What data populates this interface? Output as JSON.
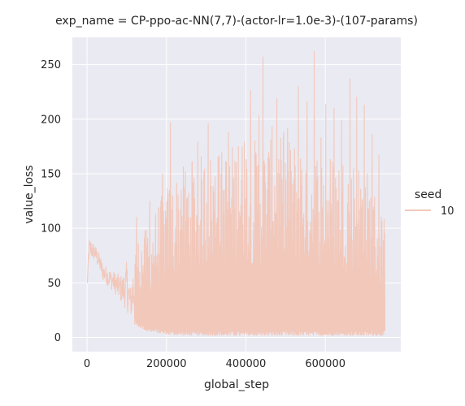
{
  "chart_data": {
    "type": "line",
    "title": "exp_name = CP-ppo-ac-NN(7,7)-(actor-lr=1.0e-3)-(107-params)",
    "xlabel": "global_step",
    "ylabel": "value_loss",
    "xlim": [
      -37000,
      790000
    ],
    "ylim": [
      -13,
      275
    ],
    "x_ticks": [
      0,
      200000,
      400000,
      600000
    ],
    "x_tick_labels": [
      "0",
      "200000",
      "400000",
      "600000"
    ],
    "y_ticks": [
      0,
      50,
      100,
      150,
      200,
      250
    ],
    "y_tick_labels": [
      "0",
      "50",
      "100",
      "150",
      "200",
      "250"
    ],
    "grid": true,
    "legend": {
      "title": "seed",
      "placement": "right",
      "entries": [
        "10"
      ]
    },
    "colors": {
      "background": "#eaeaf2",
      "grid": "#ffffff",
      "series": "#f2c8bb"
    },
    "series": [
      {
        "name": "10",
        "profile": {
          "x": [
            0,
            3000,
            5000,
            10000,
            20000,
            30000,
            40000,
            50000,
            60000,
            70000,
            80000,
            90000,
            100000,
            110000,
            120000,
            130000,
            150000,
            200000,
            250000,
            300000,
            350000,
            400000,
            450000,
            500000,
            550000,
            600000,
            650000,
            700000,
            750000
          ],
          "low": [
            40,
            65,
            68,
            72,
            70,
            62,
            52,
            48,
            44,
            40,
            35,
            30,
            24,
            18,
            12,
            10,
            6,
            3,
            2,
            2,
            2,
            2,
            2,
            2,
            2,
            2,
            2,
            2,
            2
          ],
          "high": [
            55,
            70,
            92,
            90,
            85,
            78,
            68,
            65,
            62,
            60,
            58,
            57,
            70,
            45,
            90,
            92,
            100,
            140,
            160,
            170,
            175,
            185,
            180,
            185,
            180,
            170,
            170,
            160,
            110
          ]
        },
        "peaks": [
          [
            125000,
            110
          ],
          [
            158000,
            125
          ],
          [
            190000,
            150
          ],
          [
            210000,
            197
          ],
          [
            237000,
            135
          ],
          [
            265000,
            161
          ],
          [
            279000,
            179
          ],
          [
            305000,
            196
          ],
          [
            330000,
            165
          ],
          [
            356000,
            188
          ],
          [
            381000,
            175
          ],
          [
            396000,
            179
          ],
          [
            412000,
            226
          ],
          [
            433000,
            203
          ],
          [
            443000,
            257
          ],
          [
            466000,
            193
          ],
          [
            478000,
            219
          ],
          [
            495000,
            188
          ],
          [
            505000,
            192
          ],
          [
            532000,
            230
          ],
          [
            554000,
            216
          ],
          [
            572000,
            262
          ],
          [
            589000,
            183
          ],
          [
            601000,
            214
          ],
          [
            622000,
            210
          ],
          [
            641000,
            199
          ],
          [
            662000,
            237
          ],
          [
            679000,
            220
          ],
          [
            698000,
            213
          ],
          [
            718000,
            186
          ],
          [
            735000,
            167
          ],
          [
            748000,
            108
          ]
        ]
      }
    ]
  }
}
